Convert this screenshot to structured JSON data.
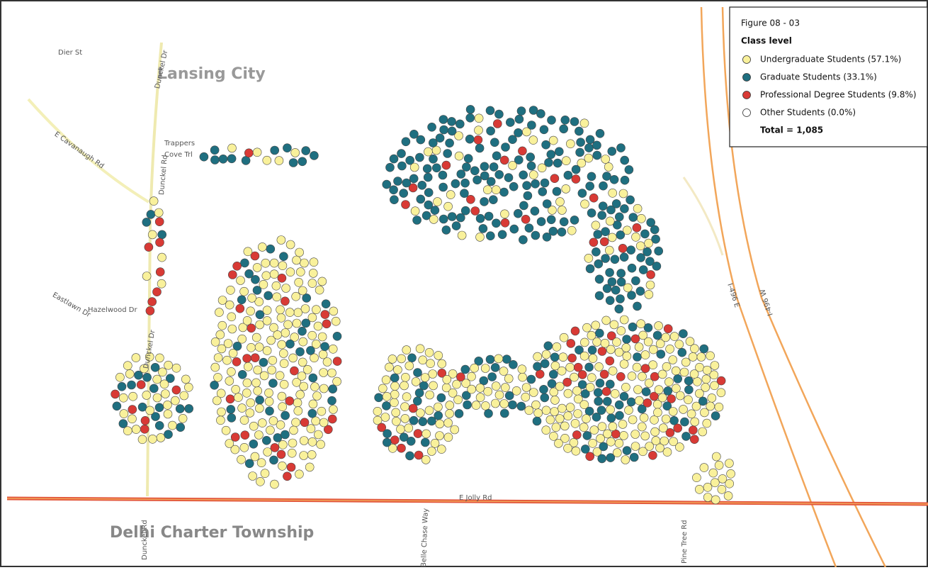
{
  "legend": {
    "figure": "Figure 08 - 03",
    "title": "Class level",
    "items": [
      {
        "label": "Undergraduate Students (57.1%)",
        "color": "#f9f19b"
      },
      {
        "label": "Graduate Students (33.1%)",
        "color": "#1f6f80"
      },
      {
        "label": "Professional Degree Students (9.8%)",
        "color": "#d83a35"
      },
      {
        "label": "Other Students (0.0%)",
        "color": "#ffffff"
      }
    ],
    "total": "Total = 1,085"
  },
  "places": {
    "city": "Lansing City",
    "township": "Delhi Charter Township"
  },
  "streets": [
    "Dier St",
    "Dunckel Dr",
    "Trappers",
    "Cove Trl",
    "E Cavanaugh Rd",
    "Dunckel Rd",
    "Hazelwood Dr",
    "Eastlawn Dr",
    "Dunckel Dr",
    "E Jolly Rd",
    "Dunckel Rd",
    "Belle Chase Way",
    "Pine Tree Rd",
    "I-496 E",
    "I-496 W"
  ]
}
